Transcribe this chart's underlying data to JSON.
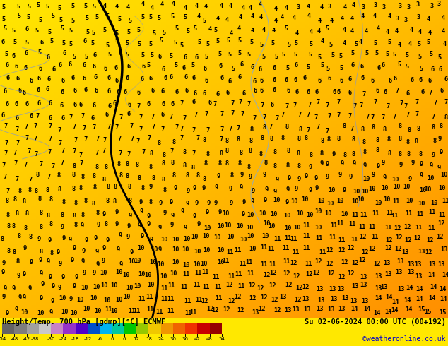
{
  "title_left": "Height/Temp. 700 hPa [gdmp][°C] ECMWF",
  "title_right": "Su 02-06-2024 00:00 UTC (00+192)",
  "credit": "©weatheronline.co.uk",
  "bg_color_top": "#FFE800",
  "bg_color_bottom_right": "#FFB000",
  "colorbar_values": [
    -54,
    -48,
    -42,
    -38,
    -30,
    -24,
    -18,
    -12,
    -6,
    0,
    6,
    12,
    18,
    24,
    30,
    36,
    42,
    48,
    54
  ],
  "colorbar_colors": [
    "#646464",
    "#7d7d7d",
    "#a0a0a0",
    "#c8c8c8",
    "#c882c8",
    "#9632c8",
    "#5000c8",
    "#0050c8",
    "#00b4f0",
    "#00c8a0",
    "#00c800",
    "#96c800",
    "#f0c800",
    "#f09600",
    "#f06400",
    "#f03200",
    "#c80000",
    "#960000"
  ],
  "number_fontsize": 6.2,
  "number_color": "#000000"
}
